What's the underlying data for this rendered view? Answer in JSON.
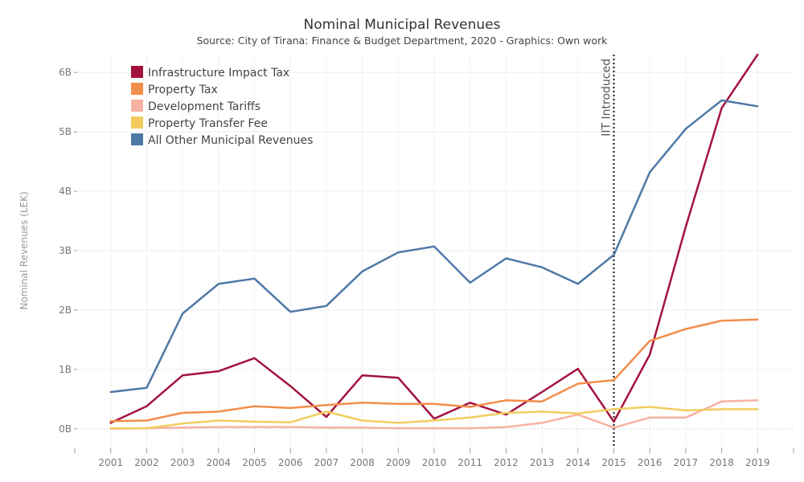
{
  "chart_data": {
    "type": "line",
    "title": "Nominal Municipal Revenues",
    "subtitle": "Source: City of Tirana: Finance & Budget Department, 2020 - Graphics: Own work",
    "xlabel": "",
    "ylabel": "Nominal Revenues (LEK)",
    "x": [
      2001,
      2002,
      2003,
      2004,
      2005,
      2006,
      2007,
      2008,
      2009,
      2010,
      2011,
      2012,
      2013,
      2014,
      2015,
      2016,
      2017,
      2018,
      2019
    ],
    "xlim": [
      2000,
      2020
    ],
    "ylim": [
      -0.3,
      6.3
    ],
    "yticks": [
      0,
      1,
      2,
      3,
      4,
      5,
      6
    ],
    "ytick_labels": [
      "0B",
      "1B",
      "2B",
      "3B",
      "4B",
      "5B",
      "6B"
    ],
    "y_unit": "billion LEK",
    "grid": true,
    "legend_position": "top-left",
    "series": [
      {
        "name": "Infrastructure Impact Tax",
        "color": "#a3143c",
        "values": [
          0.1,
          0.38,
          0.9,
          0.97,
          1.19,
          0.72,
          0.2,
          0.9,
          0.86,
          0.17,
          0.44,
          0.24,
          0.62,
          1.01,
          0.12,
          1.25,
          3.4,
          5.4,
          6.3
        ]
      },
      {
        "name": "Property Tax",
        "color": "#f28e4b",
        "values": [
          0.13,
          0.14,
          0.27,
          0.29,
          0.38,
          0.35,
          0.4,
          0.44,
          0.42,
          0.42,
          0.37,
          0.48,
          0.46,
          0.76,
          0.82,
          1.48,
          1.68,
          1.82,
          1.84
        ]
      },
      {
        "name": "Development Tariffs",
        "color": "#f6b2a2",
        "values": [
          0.0,
          0.01,
          0.02,
          0.03,
          0.03,
          0.03,
          0.02,
          0.02,
          0.01,
          0.01,
          0.01,
          0.03,
          0.1,
          0.24,
          0.02,
          0.19,
          0.19,
          0.46,
          0.48
        ]
      },
      {
        "name": "Property Transfer Fee",
        "color": "#f2cd5e",
        "values": [
          0.01,
          0.01,
          0.09,
          0.14,
          0.12,
          0.11,
          0.29,
          0.14,
          0.1,
          0.14,
          0.19,
          0.27,
          0.29,
          0.26,
          0.33,
          0.37,
          0.31,
          0.33,
          0.33
        ]
      },
      {
        "name": "All Other Municipal Revenues",
        "color": "#4e79a7",
        "values": [
          0.62,
          0.69,
          1.94,
          2.44,
          2.53,
          1.97,
          2.07,
          2.65,
          2.97,
          3.07,
          2.46,
          2.87,
          2.72,
          2.44,
          2.93,
          4.32,
          5.05,
          5.53,
          5.43
        ]
      }
    ],
    "annotations": [
      {
        "text": "IIT Introduced",
        "x": 2015,
        "style": "dotted vertical line"
      }
    ]
  }
}
